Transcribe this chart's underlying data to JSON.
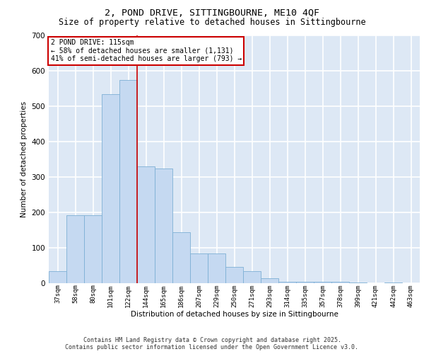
{
  "title1": "2, POND DRIVE, SITTINGBOURNE, ME10 4QF",
  "title2": "Size of property relative to detached houses in Sittingbourne",
  "xlabel": "Distribution of detached houses by size in Sittingbourne",
  "ylabel": "Number of detached properties",
  "categories": [
    "37sqm",
    "58sqm",
    "80sqm",
    "101sqm",
    "122sqm",
    "144sqm",
    "165sqm",
    "186sqm",
    "207sqm",
    "229sqm",
    "250sqm",
    "271sqm",
    "293sqm",
    "314sqm",
    "335sqm",
    "357sqm",
    "378sqm",
    "399sqm",
    "421sqm",
    "442sqm",
    "463sqm"
  ],
  "values": [
    35,
    193,
    193,
    535,
    575,
    330,
    325,
    145,
    85,
    85,
    47,
    35,
    14,
    5,
    5,
    5,
    5,
    2,
    0,
    2,
    0
  ],
  "bar_color": "#c5d9f1",
  "bar_edge_color": "#7eb0d5",
  "bg_color": "#dde8f5",
  "grid_color": "#ffffff",
  "vline_x": 4.5,
  "vline_color": "#cc0000",
  "annotation_text": "2 POND DRIVE: 115sqm\n← 58% of detached houses are smaller (1,131)\n41% of semi-detached houses are larger (793) →",
  "annotation_box_color": "#cc0000",
  "ylim": [
    0,
    700
  ],
  "yticks": [
    0,
    100,
    200,
    300,
    400,
    500,
    600,
    700
  ],
  "footer1": "Contains HM Land Registry data © Crown copyright and database right 2025.",
  "footer2": "Contains public sector information licensed under the Open Government Licence v3.0.",
  "title_fontsize": 9.5,
  "subtitle_fontsize": 8.5,
  "bar_width": 1.0
}
